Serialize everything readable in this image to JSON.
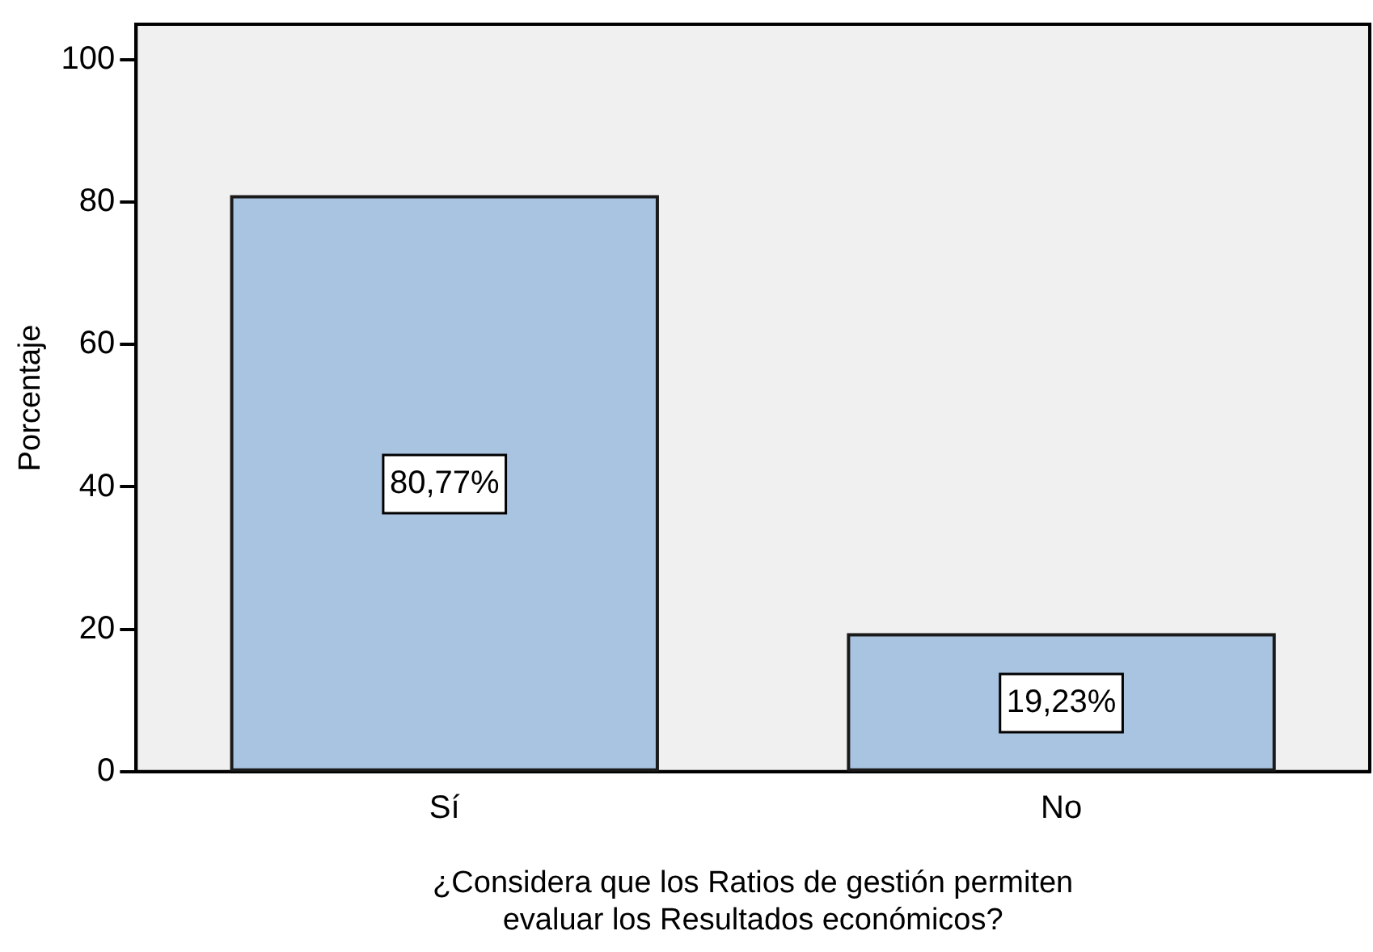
{
  "chart_data": {
    "type": "bar",
    "xlabel": "¿Considera que los Ratios de gestión permiten\nevaluar los Resultados económicos?",
    "ylabel": "Porcentaje",
    "categories": [
      "Sí",
      "No"
    ],
    "values": [
      80.77,
      19.23
    ],
    "color": "#a9c4e0",
    "value_labels": [
      "80,77%",
      "19,23%"
    ],
    "ylim": [
      0,
      105
    ],
    "yticks": [
      0,
      20,
      40,
      60,
      80,
      100
    ],
    "grid": false,
    "legend": false
  }
}
